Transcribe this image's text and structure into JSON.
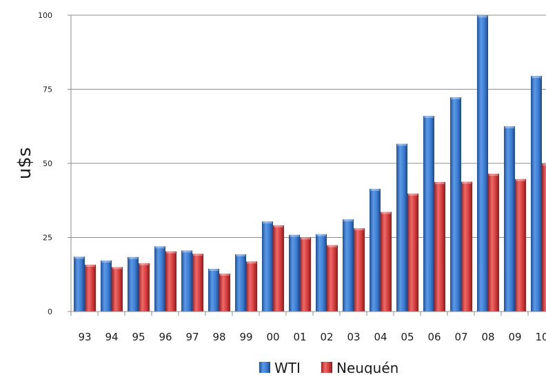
{
  "chart_data": {
    "type": "bar",
    "title": "",
    "xlabel": "",
    "ylabel": "u$s",
    "ylim": [
      0,
      100
    ],
    "yticks": [
      0,
      25,
      50,
      75,
      100
    ],
    "grid": true,
    "legend_position": "bottom",
    "categories": [
      "93",
      "94",
      "95",
      "96",
      "97",
      "98",
      "99",
      "00",
      "01",
      "02",
      "03",
      "04",
      "05",
      "06",
      "07",
      "08",
      "09",
      "10"
    ],
    "series": [
      {
        "name": "WTI",
        "color": "#3a7ad0",
        "values": [
          18.5,
          17.2,
          18.4,
          22.0,
          20.6,
          14.4,
          19.3,
          30.4,
          25.9,
          26.1,
          31.1,
          41.4,
          56.6,
          66.0,
          72.3,
          99.9,
          62.5,
          79.5
        ]
      },
      {
        "name": "Neuquén",
        "color": "#d33a3a",
        "values": [
          15.8,
          15.0,
          16.3,
          20.3,
          19.5,
          12.8,
          16.9,
          29.1,
          25.0,
          22.4,
          28.1,
          33.6,
          39.8,
          43.7,
          43.8,
          46.5,
          44.7,
          49.9
        ]
      }
    ]
  }
}
